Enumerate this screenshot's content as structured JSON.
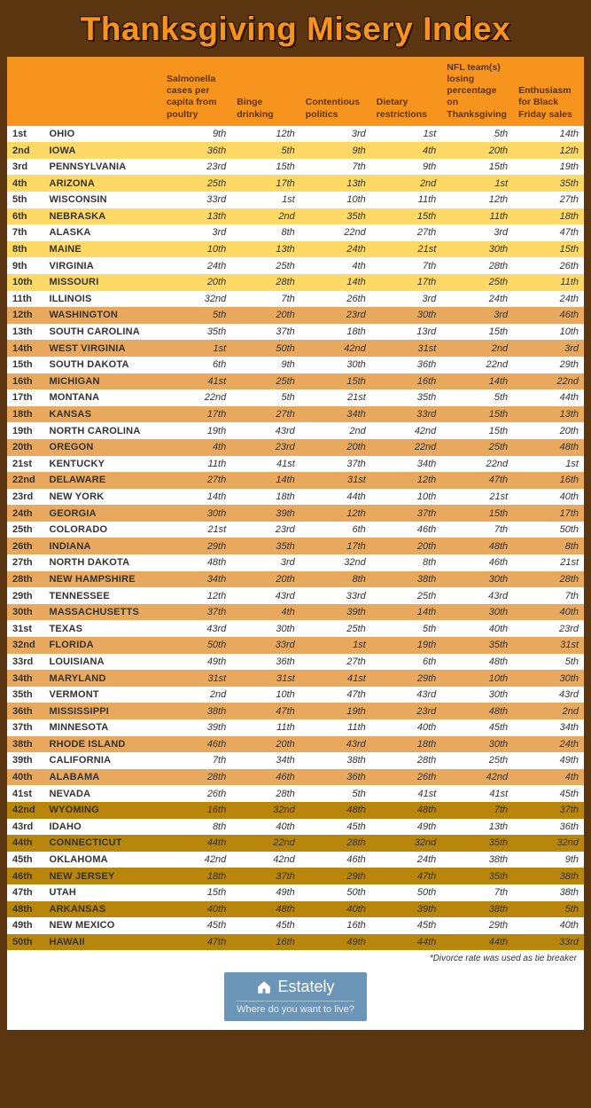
{
  "title": "Thanksgiving Misery Index",
  "colors": {
    "page_bg": "#5a3510",
    "header_bg": "#f7941e",
    "header_text": "#5a3510",
    "title_color": "#f7941e",
    "band_top_even": "#ffd966",
    "band_mid_even": "#e8a95f",
    "band_bot_even": "#b8860b",
    "row_odd": "#ffffff",
    "brand_bg": "#6b96b8"
  },
  "columns": [
    {
      "key": "rank",
      "label": ""
    },
    {
      "key": "state",
      "label": ""
    },
    {
      "key": "c1",
      "label": "Salmonella cases per capita from poultry"
    },
    {
      "key": "c2",
      "label": "Binge drinking"
    },
    {
      "key": "c3",
      "label": "Contentious politics"
    },
    {
      "key": "c4",
      "label": "Dietary restrictions"
    },
    {
      "key": "c5",
      "label": "NFL team(s) losing percentage on Thanksgiving"
    },
    {
      "key": "c6",
      "label": "Enthusiasm for Black Friday sales"
    }
  ],
  "rows": [
    {
      "rank": "1st",
      "state": "OHIO",
      "c1": "9th",
      "c2": "12th",
      "c3": "3rd",
      "c4": "1st",
      "c5": "5th",
      "c6": "14th"
    },
    {
      "rank": "2nd",
      "state": "IOWA",
      "c1": "36th",
      "c2": "5th",
      "c3": "9th",
      "c4": "4th",
      "c5": "20th",
      "c6": "12th"
    },
    {
      "rank": "3rd",
      "state": "PENNSYLVANIA",
      "c1": "23rd",
      "c2": "15th",
      "c3": "7th",
      "c4": "9th",
      "c5": "15th",
      "c6": "19th"
    },
    {
      "rank": "4th",
      "state": "ARIZONA",
      "c1": "25th",
      "c2": "17th",
      "c3": "13th",
      "c4": "2nd",
      "c5": "1st",
      "c6": "35th"
    },
    {
      "rank": "5th",
      "state": "WISCONSIN",
      "c1": "33rd",
      "c2": "1st",
      "c3": "10th",
      "c4": "11th",
      "c5": "12th",
      "c6": "27th"
    },
    {
      "rank": "6th",
      "state": "NEBRASKA",
      "c1": "13th",
      "c2": "2nd",
      "c3": "35th",
      "c4": "15th",
      "c5": "11th",
      "c6": "18th"
    },
    {
      "rank": "7th",
      "state": "ALASKA",
      "c1": "3rd",
      "c2": "8th",
      "c3": "22nd",
      "c4": "27th",
      "c5": "3rd",
      "c6": "47th"
    },
    {
      "rank": "8th",
      "state": "MAINE",
      "c1": "10th",
      "c2": "13th",
      "c3": "24th",
      "c4": "21st",
      "c5": "30th",
      "c6": "15th"
    },
    {
      "rank": "9th",
      "state": "VIRGINIA",
      "c1": "24th",
      "c2": "25th",
      "c3": "4th",
      "c4": "7th",
      "c5": "28th",
      "c6": "26th"
    },
    {
      "rank": "10th",
      "state": "MISSOURI",
      "c1": "20th",
      "c2": "28th",
      "c3": "14th",
      "c4": "17th",
      "c5": "25th",
      "c6": "11th"
    },
    {
      "rank": "11th",
      "state": "ILLINOIS",
      "c1": "32nd",
      "c2": "7th",
      "c3": "26th",
      "c4": "3rd",
      "c5": "24th",
      "c6": "24th"
    },
    {
      "rank": "12th",
      "state": "WASHINGTON",
      "c1": "5th",
      "c2": "20th",
      "c3": "23rd",
      "c4": "30th",
      "c5": "3rd",
      "c6": "46th"
    },
    {
      "rank": "13th",
      "state": "SOUTH CAROLINA",
      "c1": "35th",
      "c2": "37th",
      "c3": "18th",
      "c4": "13rd",
      "c5": "15th",
      "c6": "10th"
    },
    {
      "rank": "14th",
      "state": "WEST VIRGINIA",
      "c1": "1st",
      "c2": "50th",
      "c3": "42nd",
      "c4": "31st",
      "c5": "2nd",
      "c6": "3rd"
    },
    {
      "rank": "15th",
      "state": "SOUTH DAKOTA",
      "c1": "6th",
      "c2": "9th",
      "c3": "30th",
      "c4": "36th",
      "c5": "22nd",
      "c6": "29th"
    },
    {
      "rank": "16th",
      "state": "MICHIGAN",
      "c1": "41st",
      "c2": "25th",
      "c3": "15th",
      "c4": "16th",
      "c5": "14th",
      "c6": "22nd"
    },
    {
      "rank": "17th",
      "state": "MONTANA",
      "c1": "22nd",
      "c2": "5th",
      "c3": "21st",
      "c4": "35th",
      "c5": "5th",
      "c6": "44th"
    },
    {
      "rank": "18th",
      "state": "KANSAS",
      "c1": "17th",
      "c2": "27th",
      "c3": "34th",
      "c4": "33rd",
      "c5": "15th",
      "c6": "13th"
    },
    {
      "rank": "19th",
      "state": "NORTH CAROLINA",
      "c1": "19th",
      "c2": "43rd",
      "c3": "2nd",
      "c4": "42nd",
      "c5": "15th",
      "c6": "20th"
    },
    {
      "rank": "20th",
      "state": "OREGON",
      "c1": "4th",
      "c2": "23rd",
      "c3": "20th",
      "c4": "22nd",
      "c5": "25th",
      "c6": "48th"
    },
    {
      "rank": "21st",
      "state": "KENTUCKY",
      "c1": "11th",
      "c2": "41st",
      "c3": "37th",
      "c4": "34th",
      "c5": "22nd",
      "c6": "1st"
    },
    {
      "rank": "22nd",
      "state": "DELAWARE",
      "c1": "27th",
      "c2": "14th",
      "c3": "31st",
      "c4": "12th",
      "c5": "47th",
      "c6": "16th"
    },
    {
      "rank": "23rd",
      "state": "NEW YORK",
      "c1": "14th",
      "c2": "18th",
      "c3": "44th",
      "c4": "10th",
      "c5": "21st",
      "c6": "40th"
    },
    {
      "rank": "24th",
      "state": "GEORGIA",
      "c1": "30th",
      "c2": "39th",
      "c3": "12th",
      "c4": "37th",
      "c5": "15th",
      "c6": "17th"
    },
    {
      "rank": "25th",
      "state": "COLORADO",
      "c1": "21st",
      "c2": "23rd",
      "c3": "6th",
      "c4": "46th",
      "c5": "7th",
      "c6": "50th"
    },
    {
      "rank": "26th",
      "state": "INDIANA",
      "c1": "29th",
      "c2": "35th",
      "c3": "17th",
      "c4": "20th",
      "c5": "48th",
      "c6": "8th"
    },
    {
      "rank": "27th",
      "state": "NORTH DAKOTA",
      "c1": "48th",
      "c2": "3rd",
      "c3": "32nd",
      "c4": "8th",
      "c5": "46th",
      "c6": "21st"
    },
    {
      "rank": "28th",
      "state": "NEW HAMPSHIRE",
      "c1": "34th",
      "c2": "20th",
      "c3": "8th",
      "c4": "38th",
      "c5": "30th",
      "c6": "28th"
    },
    {
      "rank": "29th",
      "state": "TENNESSEE",
      "c1": "12th",
      "c2": "43rd",
      "c3": "33rd",
      "c4": "25th",
      "c5": "43rd",
      "c6": "7th"
    },
    {
      "rank": "30th",
      "state": "MASSACHUSETTS",
      "c1": "37th",
      "c2": "4th",
      "c3": "39th",
      "c4": "14th",
      "c5": "30th",
      "c6": "40th"
    },
    {
      "rank": "31st",
      "state": "TEXAS",
      "c1": "43rd",
      "c2": "30th",
      "c3": "25th",
      "c4": "5th",
      "c5": "40th",
      "c6": "23rd"
    },
    {
      "rank": "32nd",
      "state": "FLORIDA",
      "c1": "50th",
      "c2": "33rd",
      "c3": "1st",
      "c4": "19th",
      "c5": "35th",
      "c6": "31st"
    },
    {
      "rank": "33rd",
      "state": "LOUISIANA",
      "c1": "49th",
      "c2": "36th",
      "c3": "27th",
      "c4": "6th",
      "c5": "48th",
      "c6": "5th"
    },
    {
      "rank": "34th",
      "state": "MARYLAND",
      "c1": "31st",
      "c2": "31st",
      "c3": "41st",
      "c4": "29th",
      "c5": "10th",
      "c6": "30th"
    },
    {
      "rank": "35th",
      "state": "VERMONT",
      "c1": "2nd",
      "c2": "10th",
      "c3": "47th",
      "c4": "43rd",
      "c5": "30th",
      "c6": "43rd"
    },
    {
      "rank": "36th",
      "state": "MISSISSIPPI",
      "c1": "38th",
      "c2": "47th",
      "c3": "19th",
      "c4": "23rd",
      "c5": "48th",
      "c6": "2nd"
    },
    {
      "rank": "37th",
      "state": "MINNESOTA",
      "c1": "39th",
      "c2": "11th",
      "c3": "11th",
      "c4": "40th",
      "c5": "45th",
      "c6": "34th"
    },
    {
      "rank": "38th",
      "state": "RHODE ISLAND",
      "c1": "46th",
      "c2": "20th",
      "c3": "43rd",
      "c4": "18th",
      "c5": "30th",
      "c6": "24th"
    },
    {
      "rank": "39th",
      "state": "CALIFORNIA",
      "c1": "7th",
      "c2": "34th",
      "c3": "38th",
      "c4": "28th",
      "c5": "25th",
      "c6": "49th"
    },
    {
      "rank": "40th",
      "state": "ALABAMA",
      "c1": "28th",
      "c2": "46th",
      "c3": "36th",
      "c4": "26th",
      "c5": "42nd",
      "c6": "4th"
    },
    {
      "rank": "41st",
      "state": "NEVADA",
      "c1": "26th",
      "c2": "28th",
      "c3": "5th",
      "c4": "41st",
      "c5": "41st",
      "c6": "45th"
    },
    {
      "rank": "42nd",
      "state": "WYOMING",
      "c1": "16th",
      "c2": "32nd",
      "c3": "48th",
      "c4": "48th",
      "c5": "7th",
      "c6": "37th"
    },
    {
      "rank": "43rd",
      "state": "IDAHO",
      "c1": "8th",
      "c2": "40th",
      "c3": "45th",
      "c4": "49th",
      "c5": "13th",
      "c6": "36th"
    },
    {
      "rank": "44th",
      "state": "CONNECTICUT",
      "c1": "44th",
      "c2": "22nd",
      "c3": "28th",
      "c4": "32nd",
      "c5": "35th",
      "c6": "32nd"
    },
    {
      "rank": "45th",
      "state": "OKLAHOMA",
      "c1": "42nd",
      "c2": "42nd",
      "c3": "46th",
      "c4": "24th",
      "c5": "38th",
      "c6": "9th"
    },
    {
      "rank": "46th",
      "state": "NEW JERSEY",
      "c1": "18th",
      "c2": "37th",
      "c3": "29th",
      "c4": "47th",
      "c5": "35th",
      "c6": "38th"
    },
    {
      "rank": "47th",
      "state": "UTAH",
      "c1": "15th",
      "c2": "49th",
      "c3": "50th",
      "c4": "50th",
      "c5": "7th",
      "c6": "38th"
    },
    {
      "rank": "48th",
      "state": "ARKANSAS",
      "c1": "40th",
      "c2": "48th",
      "c3": "40th",
      "c4": "39th",
      "c5": "38th",
      "c6": "5th"
    },
    {
      "rank": "49th",
      "state": "NEW MEXICO",
      "c1": "45th",
      "c2": "45th",
      "c3": "16th",
      "c4": "45th",
      "c5": "29th",
      "c6": "40th"
    },
    {
      "rank": "50th",
      "state": "HAWAII",
      "c1": "47th",
      "c2": "16th",
      "c3": "49th",
      "c4": "44th",
      "c5": "44th",
      "c6": "33rd"
    }
  ],
  "footnote": "*Divorce rate was used as tie breaker",
  "brand": {
    "name": "Estately",
    "tagline": "Where do you want to live?"
  }
}
